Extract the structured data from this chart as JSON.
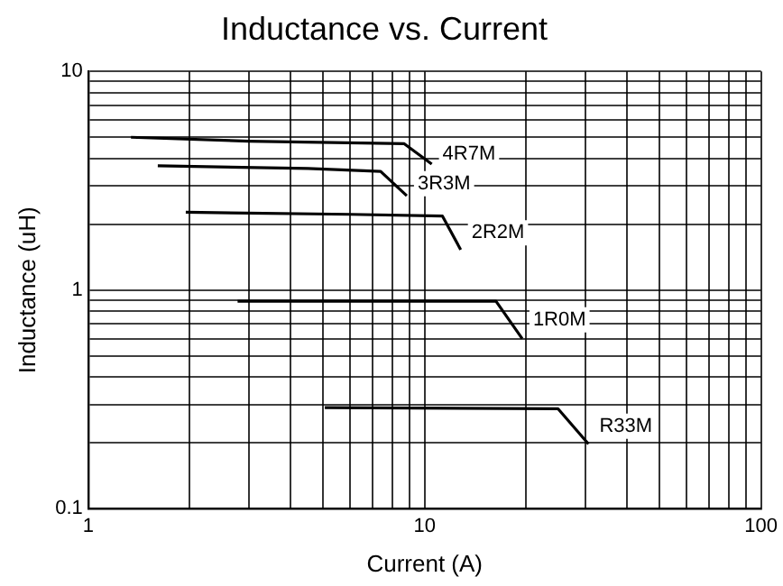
{
  "chart_data": {
    "type": "line",
    "title": "Inductance vs. Current",
    "xlabel": "Current (A)",
    "ylabel": "Inductance (uH)",
    "log": "xy",
    "grid": true,
    "legend": false,
    "marker": "none",
    "line_style": "solid",
    "xlim": [
      1,
      100
    ],
    "ylim": [
      0.1,
      10
    ],
    "xticks": [
      1,
      {
        "value": 2,
        "label": null
      },
      {
        "value": 3,
        "label": null
      },
      {
        "value": 4,
        "label": null
      },
      {
        "value": 5,
        "label": null
      },
      {
        "value": 6,
        "label": null
      },
      {
        "value": 7,
        "label": null
      },
      {
        "value": 8,
        "label": null
      },
      {
        "value": 9,
        "label": null
      },
      10,
      {
        "value": 20,
        "label": null
      },
      {
        "value": 30,
        "label": null
      },
      {
        "value": 40,
        "label": null
      },
      {
        "value": 50,
        "label": null
      },
      {
        "value": 60,
        "label": null
      },
      {
        "value": 70,
        "label": null
      },
      {
        "value": 80,
        "label": null
      },
      {
        "value": 90,
        "label": null
      },
      100
    ],
    "yticks": [
      0.1,
      {
        "value": 0.2,
        "label": null
      },
      {
        "value": 0.3,
        "label": null
      },
      {
        "value": 0.4,
        "label": null
      },
      {
        "value": 0.5,
        "label": null
      },
      {
        "value": 0.6,
        "label": null
      },
      {
        "value": 0.7,
        "label": null
      },
      {
        "value": 0.8,
        "label": null
      },
      {
        "value": 0.9,
        "label": null
      },
      1,
      {
        "value": 2,
        "label": null
      },
      {
        "value": 3,
        "label": null
      },
      {
        "value": 4,
        "label": null
      },
      {
        "value": 5,
        "label": null
      },
      {
        "value": 6,
        "label": null
      },
      {
        "value": 7,
        "label": null
      },
      {
        "value": 8,
        "label": null
      },
      {
        "value": 9,
        "label": null
      },
      10
    ],
    "series": [
      {
        "name": "4R7M",
        "color": "#000000",
        "x": [
          1.34,
          3,
          8.7,
          10.5
        ],
        "values": [
          5.0,
          4.8,
          4.67,
          3.77
        ]
      },
      {
        "name": "3R3M",
        "color": "#000000",
        "x": [
          1.61,
          4.5,
          7.4,
          8.85
        ],
        "values": [
          3.7,
          3.6,
          3.49,
          2.7
        ]
      },
      {
        "name": "2R2M",
        "color": "#000000",
        "x": [
          1.95,
          6,
          11.3,
          12.8
        ],
        "values": [
          2.27,
          2.22,
          2.18,
          1.53
        ]
      },
      {
        "name": "1R0M",
        "color": "#000000",
        "x": [
          2.78,
          16.3,
          19.5
        ],
        "values": [
          0.89,
          0.89,
          0.6
        ]
      },
      {
        "name": "R33M",
        "color": "#000000",
        "x": [
          5.05,
          24.9,
          30.7
        ],
        "values": [
          0.29,
          0.287,
          0.198
        ]
      }
    ]
  }
}
